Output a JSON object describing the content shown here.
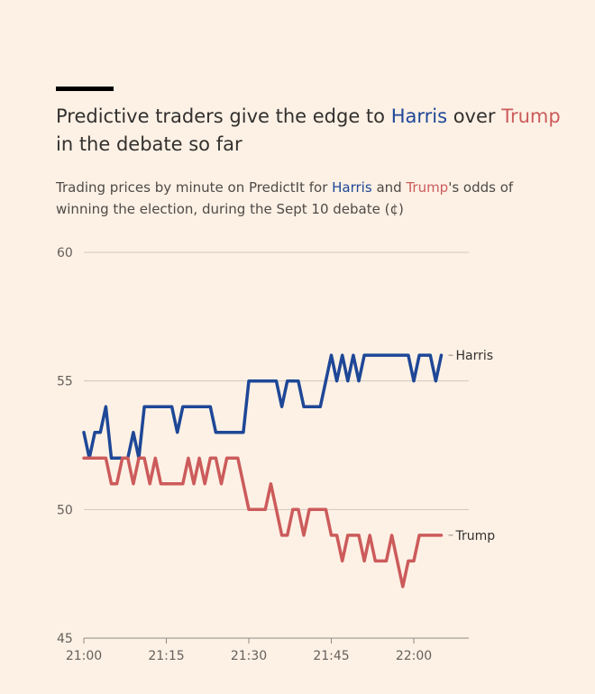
{
  "title": {
    "part1": "Predictive traders give the edge to ",
    "harris": "Harris",
    "part2": " over ",
    "trump": "Trump",
    "part3": " in the debate so far"
  },
  "subtitle": {
    "part1": "Trading prices by minute on PredictIt for ",
    "harris": "Harris",
    "part2": " and ",
    "trump": "Trump",
    "part3": "'s odds of winning the election, during the Sept 10 debate (¢)"
  },
  "colors": {
    "harris": "#1e4797",
    "trump": "#cc5b5b",
    "background": "#fdf1e5",
    "grid": "#cfc7be"
  },
  "chart_data": {
    "type": "line",
    "xlabel": "",
    "ylabel": "",
    "xlim": [
      "21:00",
      "22:06"
    ],
    "ylim": [
      45,
      60
    ],
    "xticks": [
      "21:00",
      "21:15",
      "21:30",
      "21:45",
      "22:00"
    ],
    "yticks": [
      45,
      50,
      55,
      60
    ],
    "grid": "horizontal",
    "legend": "direct labels at line ends",
    "series": [
      {
        "name": "Harris",
        "color": "#1e4797",
        "x": [
          "21:00",
          "21:01",
          "21:02",
          "21:03",
          "21:04",
          "21:05",
          "21:06",
          "21:07",
          "21:08",
          "21:09",
          "21:10",
          "21:11",
          "21:12",
          "21:13",
          "21:14",
          "21:15",
          "21:16",
          "21:17",
          "21:18",
          "21:19",
          "21:20",
          "21:21",
          "21:22",
          "21:23",
          "21:24",
          "21:25",
          "21:26",
          "21:27",
          "21:28",
          "21:29",
          "21:30",
          "21:31",
          "21:32",
          "21:33",
          "21:34",
          "21:35",
          "21:36",
          "21:37",
          "21:38",
          "21:39",
          "21:40",
          "21:41",
          "21:42",
          "21:43",
          "21:44",
          "21:45",
          "21:46",
          "21:47",
          "21:48",
          "21:49",
          "21:50",
          "21:51",
          "21:52",
          "21:53",
          "21:54",
          "21:55",
          "21:56",
          "21:57",
          "21:58",
          "21:59",
          "22:00",
          "22:01",
          "22:02",
          "22:03",
          "22:04",
          "22:05"
        ],
        "y": [
          53,
          52,
          53,
          53,
          54,
          52,
          52,
          52,
          52,
          53,
          52,
          54,
          54,
          54,
          54,
          54,
          54,
          53,
          54,
          54,
          54,
          54,
          54,
          54,
          53,
          53,
          53,
          53,
          53,
          53,
          55,
          55,
          55,
          55,
          55,
          55,
          54,
          55,
          55,
          55,
          54,
          54,
          54,
          54,
          55,
          56,
          55,
          56,
          55,
          56,
          55,
          56,
          56,
          56,
          56,
          56,
          56,
          56,
          56,
          56,
          55,
          56,
          56,
          56,
          55,
          56
        ]
      },
      {
        "name": "Trump",
        "color": "#cc5b5b",
        "x": [
          "21:00",
          "21:01",
          "21:02",
          "21:03",
          "21:04",
          "21:05",
          "21:06",
          "21:07",
          "21:08",
          "21:09",
          "21:10",
          "21:11",
          "21:12",
          "21:13",
          "21:14",
          "21:15",
          "21:16",
          "21:17",
          "21:18",
          "21:19",
          "21:20",
          "21:21",
          "21:22",
          "21:23",
          "21:24",
          "21:25",
          "21:26",
          "21:27",
          "21:28",
          "21:29",
          "21:30",
          "21:31",
          "21:32",
          "21:33",
          "21:34",
          "21:35",
          "21:36",
          "21:37",
          "21:38",
          "21:39",
          "21:40",
          "21:41",
          "21:42",
          "21:43",
          "21:44",
          "21:45",
          "21:46",
          "21:47",
          "21:48",
          "21:49",
          "21:50",
          "21:51",
          "21:52",
          "21:53",
          "21:54",
          "21:55",
          "21:56",
          "21:57",
          "21:58",
          "21:59",
          "22:00",
          "22:01",
          "22:02",
          "22:03",
          "22:04",
          "22:05"
        ],
        "y": [
          52,
          52,
          52,
          52,
          52,
          51,
          51,
          52,
          52,
          51,
          52,
          52,
          51,
          52,
          51,
          51,
          51,
          51,
          51,
          52,
          51,
          52,
          51,
          52,
          52,
          51,
          52,
          52,
          52,
          51,
          50,
          50,
          50,
          50,
          51,
          50,
          49,
          49,
          50,
          50,
          49,
          50,
          50,
          50,
          50,
          49,
          49,
          48,
          49,
          49,
          49,
          48,
          49,
          48,
          48,
          48,
          49,
          48,
          47,
          48,
          48,
          49,
          49,
          49,
          49,
          49
        ]
      }
    ]
  }
}
